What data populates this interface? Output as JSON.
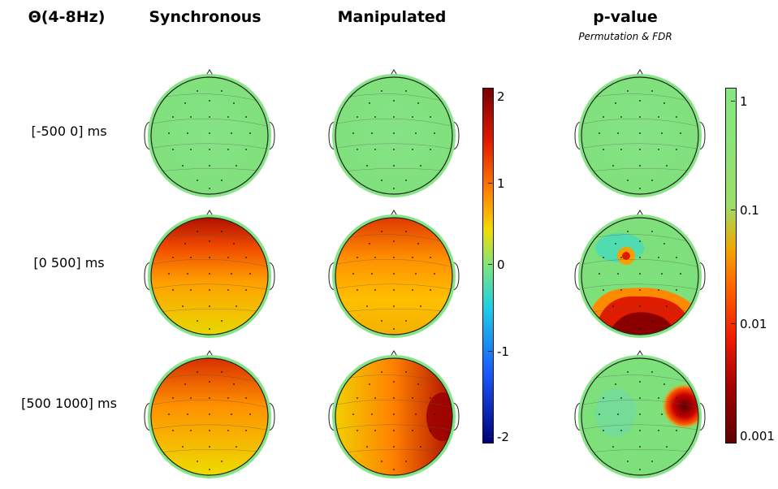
{
  "headers": {
    "band": "Θ(4-8Hz)",
    "synchronous": "Synchronous",
    "manipulated": "Manipulated",
    "pvalue": "p-value",
    "pvalue_sub": "Permutation & FDR"
  },
  "rows": [
    {
      "label": "[-500 0] ms"
    },
    {
      "label": "[0 500] ms"
    },
    {
      "label": "[500 1000] ms"
    }
  ],
  "amplitude_colorbar": {
    "ticks": [
      "2",
      "1",
      "0",
      "-1",
      "-2"
    ],
    "range": [
      -2,
      2
    ],
    "colors": [
      "#7a0000",
      "#e41a00",
      "#ff8a00",
      "#f2dc00",
      "#7ee57e",
      "#1ccfe6",
      "#1a5aff",
      "#00007a"
    ]
  },
  "pvalue_colorbar": {
    "ticks": [
      "1",
      "0.1",
      "0.01",
      "0.001"
    ],
    "scale": "log",
    "range": [
      0.001,
      1
    ],
    "colors": [
      "#82e882",
      "#9bde6a",
      "#f0a800",
      "#ff6a00",
      "#f01c00",
      "#a00000",
      "#600000"
    ]
  }
}
